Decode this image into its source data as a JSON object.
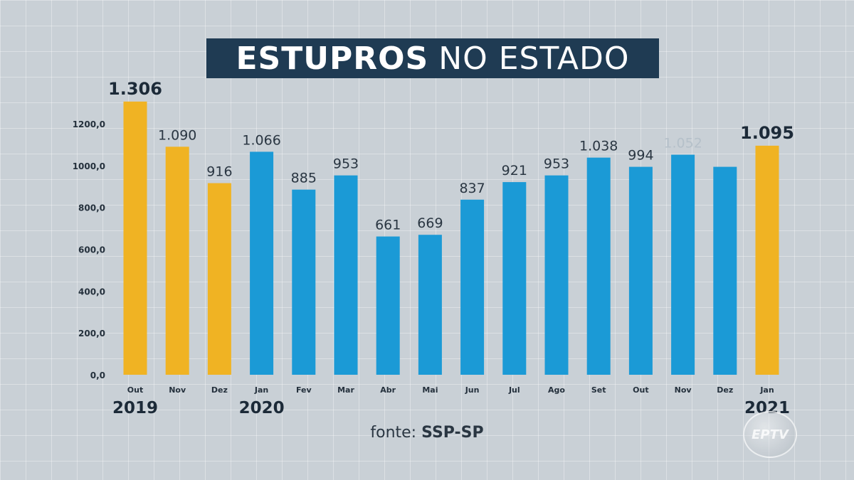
{
  "title": {
    "bold": "ESTUPROS",
    "regular": "NO ESTADO"
  },
  "source": {
    "prefix": "fonte:",
    "name": "SSP-SP"
  },
  "logo": "EPTV",
  "colors": {
    "highlight": "#f0b323",
    "normal": "#1b9ad6",
    "title_bg": "#1f3b53"
  },
  "chart_data": {
    "type": "bar",
    "title": "ESTUPROS NO ESTADO",
    "ylim": [
      0,
      1250
    ],
    "yticks": [
      "0,0",
      "200,0",
      "400,0",
      "600,0",
      "800,0",
      "1000,0",
      "1200,0"
    ],
    "ytick_values": [
      0,
      200,
      400,
      600,
      800,
      1000,
      1200
    ],
    "categories": [
      "Out",
      "Nov",
      "Dez",
      "Jan",
      "Fev",
      "Mar",
      "Abr",
      "Mai",
      "Jun",
      "Jul",
      "Ago",
      "Set",
      "Out",
      "Nov",
      "Dez",
      "Jan"
    ],
    "values": [
      1306,
      1090,
      916,
      1066,
      885,
      953,
      661,
      669,
      837,
      921,
      953,
      1038,
      994,
      1052,
      994,
      1095
    ],
    "labels": [
      "1.306",
      "1.090",
      "916",
      "1.066",
      "885",
      "953",
      "661",
      "669",
      "837",
      "921",
      "953",
      "1.038",
      "994",
      "1.052",
      "",
      "1.095"
    ],
    "highlight": [
      true,
      true,
      true,
      false,
      false,
      false,
      false,
      false,
      false,
      false,
      false,
      false,
      false,
      false,
      false,
      true
    ],
    "year_labels": [
      {
        "text": "2019",
        "index": 0
      },
      {
        "text": "2020",
        "index": 3
      },
      {
        "text": "2021",
        "index": 15
      }
    ],
    "grid": false
  }
}
